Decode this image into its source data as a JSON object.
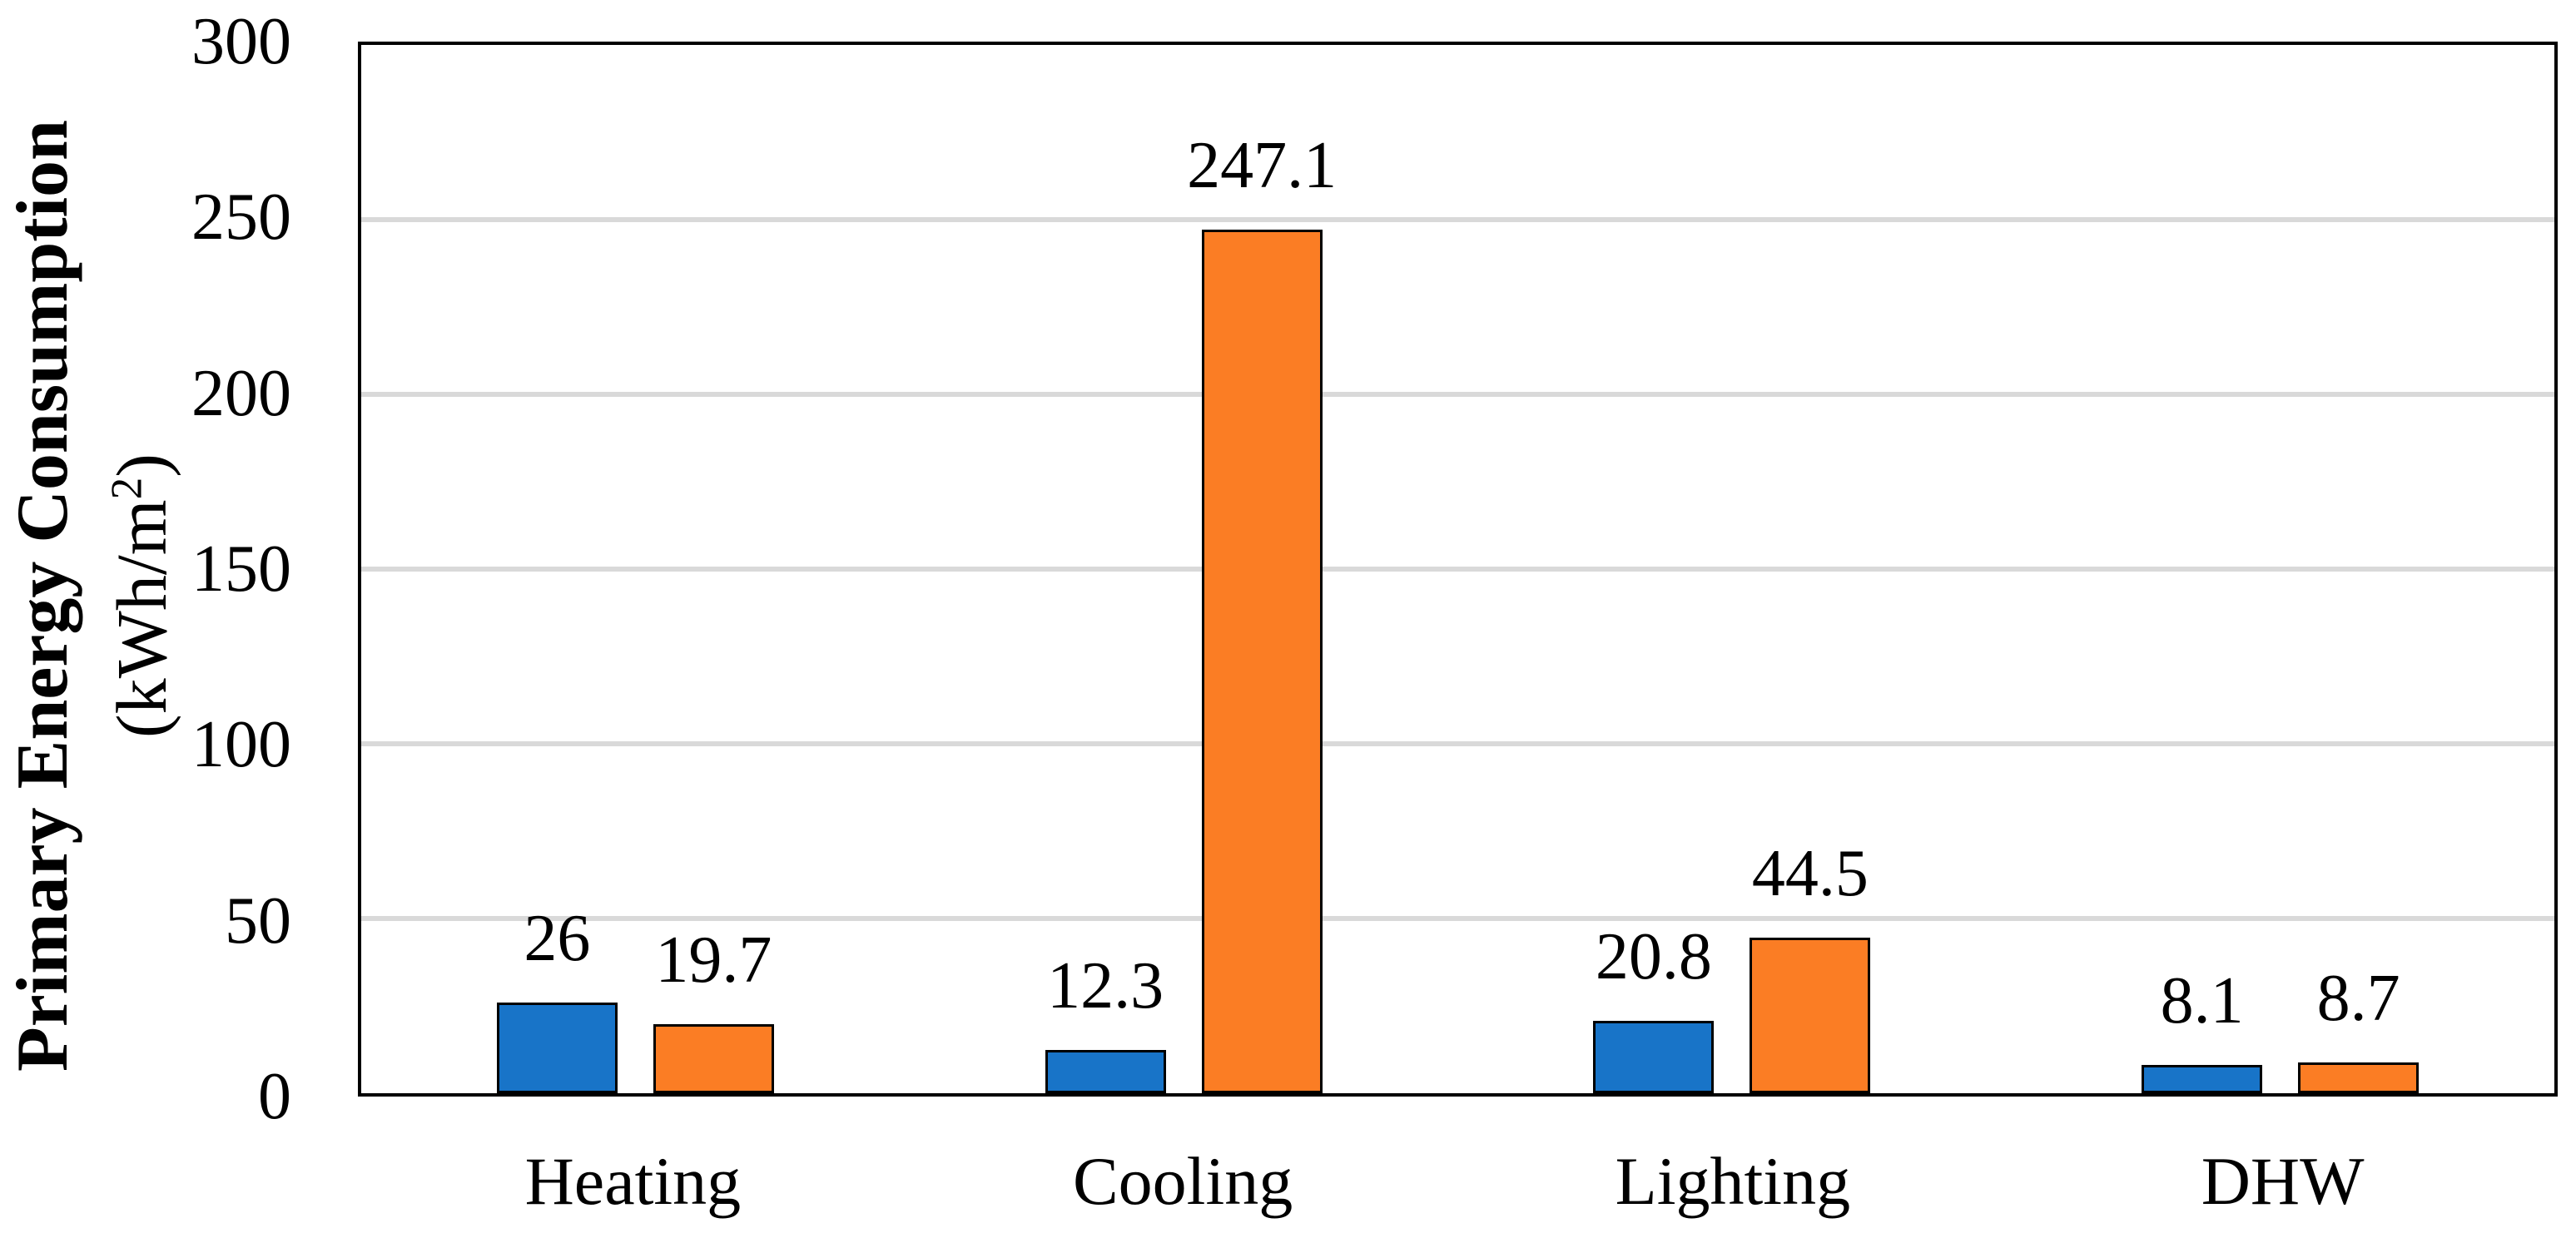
{
  "figure": {
    "y_axis_title": "Primary Energy Consumption",
    "y_axis_units_prefix": "(kWh/m",
    "y_axis_units_sup": "2",
    "y_axis_units_suffix": ")"
  },
  "chart_data": {
    "type": "bar",
    "title": "",
    "ylabel": "Primary Energy Consumption (kWh/m2)",
    "xlabel": "",
    "categories": [
      "Heating",
      "Cooling",
      "Lighting",
      "DHW"
    ],
    "series": [
      {
        "name": "series-blue",
        "color": "#1874C8",
        "values": [
          26,
          12.3,
          20.8,
          8.1
        ],
        "labels": [
          "26",
          "12.3",
          "20.8",
          "8.1"
        ]
      },
      {
        "name": "series-orange",
        "color": "#FB7D24",
        "values": [
          19.7,
          247.1,
          44.5,
          8.7
        ],
        "labels": [
          "19.7",
          "247.1",
          "44.5",
          "8.7"
        ]
      }
    ],
    "ylim": [
      0,
      300
    ],
    "ytick_interval": 50,
    "yticks": [
      "300",
      "250",
      "200",
      "150",
      "100",
      "50",
      "0"
    ],
    "grid": true,
    "legend": "none",
    "colors": {
      "gridline": "#D9D9D9",
      "axis_border": "#000000",
      "bar_outline": "#000000",
      "text": "#000000",
      "background": "#FFFFFF"
    }
  }
}
